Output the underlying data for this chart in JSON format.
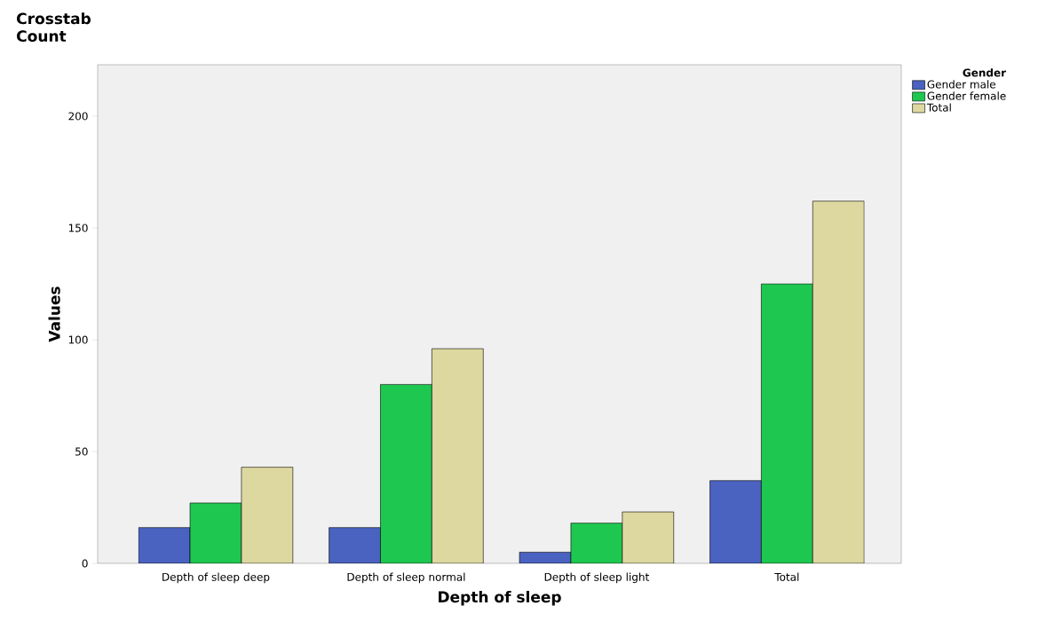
{
  "chart_data": {
    "type": "bar",
    "title": "Crosstab",
    "subtitle": "Count",
    "xlabel": "Depth of sleep",
    "ylabel": "Values",
    "legend_title": "Gender",
    "categories": [
      "Depth of sleep deep",
      "Depth of sleep normal",
      "Depth of sleep light",
      "Total"
    ],
    "series": [
      {
        "name": "Gender male",
        "color": "#4a62c0",
        "values": [
          16,
          16,
          5,
          37
        ]
      },
      {
        "name": "Gender female",
        "color": "#1ec850",
        "values": [
          27,
          80,
          18,
          125
        ]
      },
      {
        "name": "Total",
        "color": "#ddd8a0",
        "values": [
          43,
          96,
          23,
          162
        ]
      }
    ],
    "ylim": [
      0,
      223
    ],
    "yticks": [
      0,
      50,
      100,
      150,
      200
    ],
    "grid": false,
    "legend": "right"
  }
}
